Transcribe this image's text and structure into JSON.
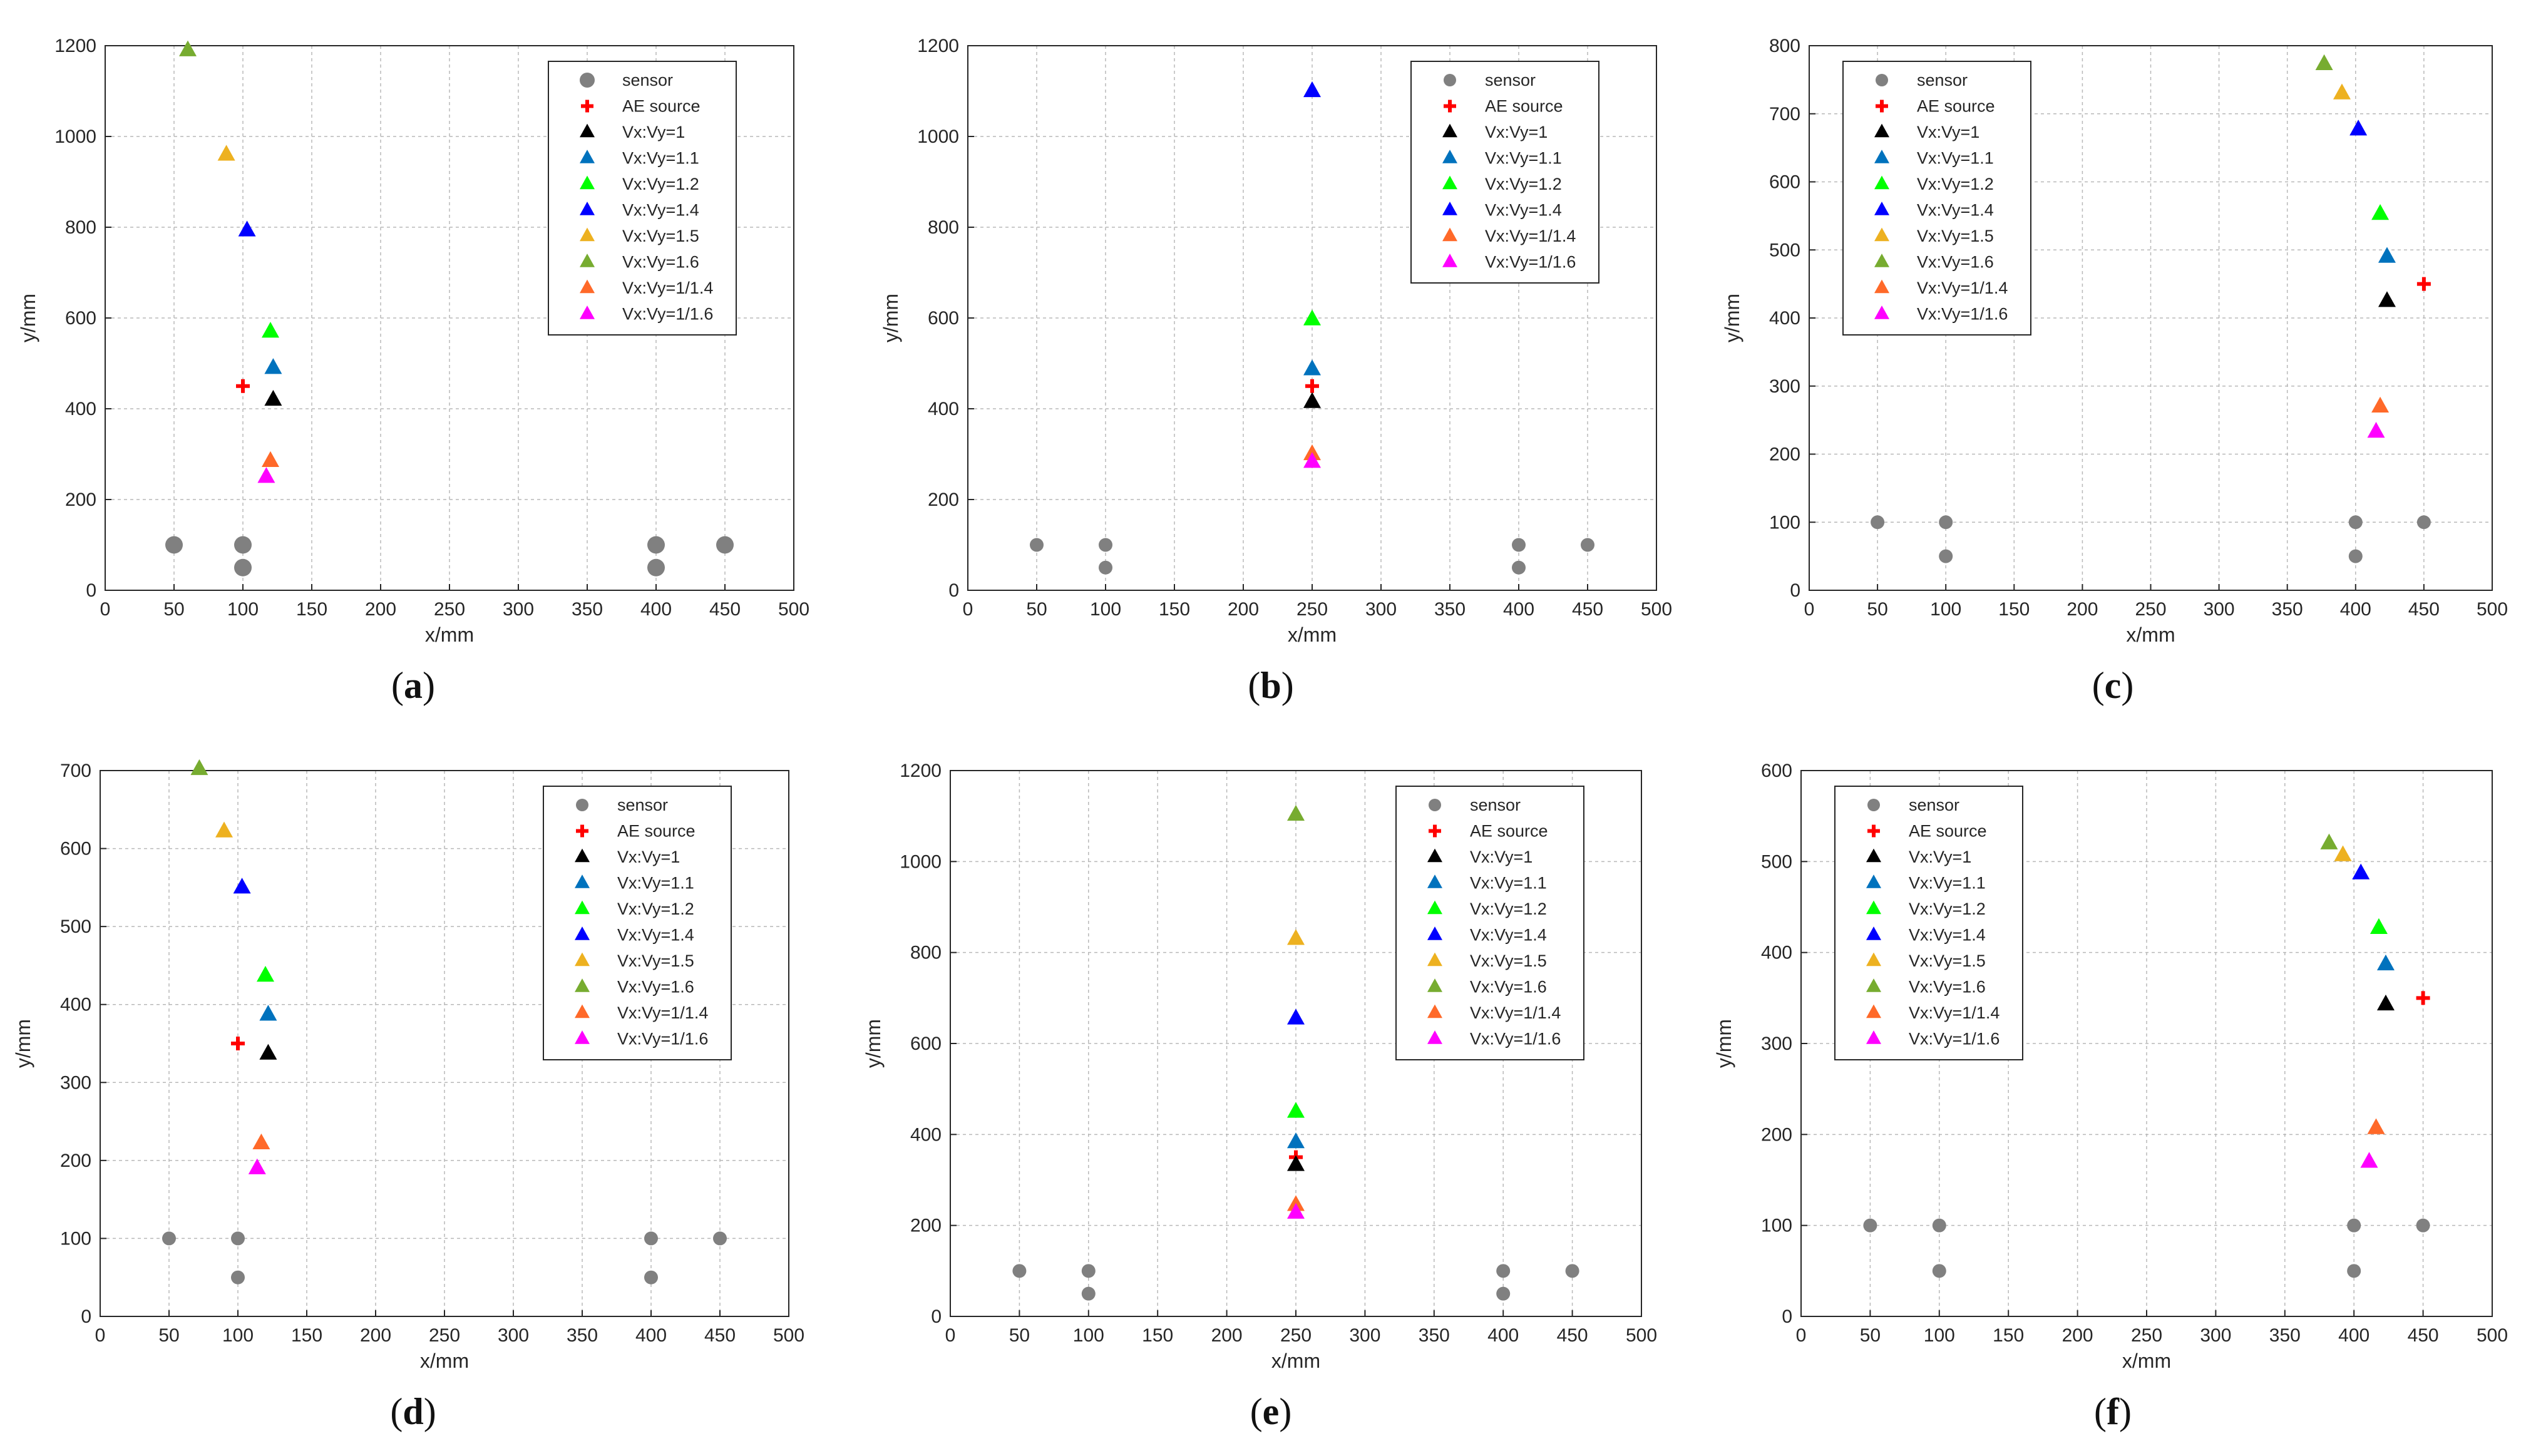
{
  "colors": {
    "sensor": "#808080",
    "ae_source": "#ff0000",
    "r1": "#000000",
    "r11": "#0072bd",
    "r12": "#00ff00",
    "r14": "#0000ff",
    "r15": "#edb120",
    "r16": "#77ac30",
    "r114": "#ff6929",
    "r116": "#ff00ff"
  },
  "legend_entries": [
    {
      "key": "sensor",
      "label": "sensor",
      "marker": "circle",
      "color_key": "sensor"
    },
    {
      "key": "ae",
      "label": "AE source",
      "marker": "plus",
      "color_key": "ae_source"
    },
    {
      "key": "r1",
      "label": "Vx:Vy=1",
      "marker": "triangle",
      "color_key": "r1"
    },
    {
      "key": "r11",
      "label": "Vx:Vy=1.1",
      "marker": "triangle",
      "color_key": "r11"
    },
    {
      "key": "r12",
      "label": "Vx:Vy=1.2",
      "marker": "triangle",
      "color_key": "r12"
    },
    {
      "key": "r14",
      "label": "Vx:Vy=1.4",
      "marker": "triangle",
      "color_key": "r14"
    },
    {
      "key": "r15",
      "label": "Vx:Vy=1.5",
      "marker": "triangle",
      "color_key": "r15"
    },
    {
      "key": "r16",
      "label": "Vx:Vy=1.6",
      "marker": "triangle",
      "color_key": "r16"
    },
    {
      "key": "r114",
      "label": "Vx:Vy=1/1.4",
      "marker": "triangle",
      "color_key": "r114"
    },
    {
      "key": "r116",
      "label": "Vx:Vy=1/1.6",
      "marker": "triangle",
      "color_key": "r116"
    }
  ],
  "chart_data": [
    {
      "id": "a",
      "caption": "a",
      "type": "scatter",
      "xlabel": "x/mm",
      "ylabel": "y/mm",
      "xlim": [
        0,
        500
      ],
      "ylim": [
        0,
        1200
      ],
      "xticks": [
        0,
        50,
        100,
        150,
        200,
        250,
        300,
        350,
        400,
        450,
        500
      ],
      "yticks": [
        0,
        200,
        400,
        600,
        800,
        1000,
        1200
      ],
      "grid": true,
      "legend_position": "top-right",
      "legend_keys": [
        "sensor",
        "ae",
        "r1",
        "r11",
        "r12",
        "r14",
        "r15",
        "r16",
        "r114",
        "r116"
      ],
      "sensor_size": "large",
      "sensors": [
        [
          50,
          100
        ],
        [
          100,
          100
        ],
        [
          100,
          50
        ],
        [
          400,
          100
        ],
        [
          400,
          50
        ],
        [
          450,
          100
        ]
      ],
      "ae_source": [
        100,
        450
      ],
      "points": {
        "r1": [
          122,
          420
        ],
        "r11": [
          122,
          490
        ],
        "r12": [
          120,
          570
        ],
        "r14": [
          103,
          793
        ],
        "r15": [
          88,
          960
        ],
        "r16": [
          60,
          1190
        ],
        "r114": [
          120,
          285
        ],
        "r116": [
          117,
          250
        ]
      }
    },
    {
      "id": "b",
      "caption": "b",
      "type": "scatter",
      "xlabel": "x/mm",
      "ylabel": "y/mm",
      "xlim": [
        0,
        500
      ],
      "ylim": [
        0,
        1200
      ],
      "xticks": [
        0,
        50,
        100,
        150,
        200,
        250,
        300,
        350,
        400,
        450,
        500
      ],
      "yticks": [
        0,
        200,
        400,
        600,
        800,
        1000,
        1200
      ],
      "grid": true,
      "legend_position": "top-right",
      "legend_keys": [
        "sensor",
        "ae",
        "r1",
        "r11",
        "r12",
        "r14",
        "r114",
        "r116"
      ],
      "sensor_size": "small",
      "sensors": [
        [
          50,
          100
        ],
        [
          100,
          100
        ],
        [
          100,
          50
        ],
        [
          400,
          100
        ],
        [
          400,
          50
        ],
        [
          450,
          100
        ]
      ],
      "ae_source": [
        250,
        450
      ],
      "points": {
        "r1": [
          250,
          415
        ],
        "r11": [
          250,
          487
        ],
        "r12": [
          250,
          597
        ],
        "r14": [
          250,
          1100
        ],
        "r114": [
          250,
          300
        ],
        "r116": [
          250,
          283
        ]
      }
    },
    {
      "id": "c",
      "caption": "c",
      "type": "scatter",
      "xlabel": "x/mm",
      "ylabel": "y/mm",
      "xlim": [
        0,
        500
      ],
      "ylim": [
        0,
        800
      ],
      "xticks": [
        0,
        50,
        100,
        150,
        200,
        250,
        300,
        350,
        400,
        450,
        500
      ],
      "yticks": [
        0,
        100,
        200,
        300,
        400,
        500,
        600,
        700,
        800
      ],
      "grid": true,
      "legend_position": "top-left",
      "legend_keys": [
        "sensor",
        "ae",
        "r1",
        "r11",
        "r12",
        "r14",
        "r15",
        "r16",
        "r114",
        "r116"
      ],
      "sensor_size": "small",
      "sensors": [
        [
          50,
          100
        ],
        [
          100,
          100
        ],
        [
          100,
          50
        ],
        [
          400,
          100
        ],
        [
          400,
          50
        ],
        [
          450,
          100
        ]
      ],
      "ae_source": [
        450,
        450
      ],
      "points": {
        "r1": [
          423,
          425
        ],
        "r11": [
          423,
          490
        ],
        "r12": [
          418,
          553
        ],
        "r14": [
          402,
          677
        ],
        "r15": [
          390,
          730
        ],
        "r16": [
          377,
          773
        ],
        "r114": [
          418,
          270
        ],
        "r116": [
          415,
          233
        ]
      }
    },
    {
      "id": "d",
      "caption": "d",
      "type": "scatter",
      "xlabel": "x/mm",
      "ylabel": "y/mm",
      "xlim": [
        0,
        500
      ],
      "ylim": [
        0,
        700
      ],
      "xticks": [
        0,
        50,
        100,
        150,
        200,
        250,
        300,
        350,
        400,
        450,
        500
      ],
      "yticks": [
        0,
        100,
        200,
        300,
        400,
        500,
        600,
        700
      ],
      "grid": true,
      "legend_position": "top-right",
      "legend_keys": [
        "sensor",
        "ae",
        "r1",
        "r11",
        "r12",
        "r14",
        "r15",
        "r16",
        "r114",
        "r116"
      ],
      "sensor_size": "small",
      "sensors": [
        [
          50,
          100
        ],
        [
          100,
          100
        ],
        [
          100,
          50
        ],
        [
          400,
          100
        ],
        [
          400,
          50
        ],
        [
          450,
          100
        ]
      ],
      "ae_source": [
        100,
        350
      ],
      "points": {
        "r1": [
          122,
          337
        ],
        "r11": [
          122,
          387
        ],
        "r12": [
          120,
          437
        ],
        "r14": [
          103,
          550
        ],
        "r15": [
          90,
          622
        ],
        "r16": [
          72,
          702
        ],
        "r114": [
          117,
          222
        ],
        "r116": [
          114,
          190
        ]
      }
    },
    {
      "id": "e",
      "caption": "e",
      "type": "scatter",
      "xlabel": "x/mm",
      "ylabel": "y/mm",
      "xlim": [
        0,
        500
      ],
      "ylim": [
        0,
        1200
      ],
      "xticks": [
        0,
        50,
        100,
        150,
        200,
        250,
        300,
        350,
        400,
        450,
        500
      ],
      "yticks": [
        0,
        200,
        400,
        600,
        800,
        1000,
        1200
      ],
      "grid": true,
      "legend_position": "top-right",
      "legend_keys": [
        "sensor",
        "ae",
        "r1",
        "r11",
        "r12",
        "r14",
        "r15",
        "r16",
        "r114",
        "r116"
      ],
      "sensor_size": "small",
      "sensors": [
        [
          50,
          100
        ],
        [
          100,
          100
        ],
        [
          100,
          50
        ],
        [
          400,
          100
        ],
        [
          400,
          50
        ],
        [
          450,
          100
        ]
      ],
      "ae_source": [
        250,
        350
      ],
      "points": {
        "r1": [
          250,
          333
        ],
        "r11": [
          250,
          383
        ],
        "r12": [
          250,
          450
        ],
        "r14": [
          250,
          655
        ],
        "r15": [
          250,
          830
        ],
        "r16": [
          250,
          1103
        ],
        "r114": [
          250,
          245
        ],
        "r116": [
          250,
          228
        ]
      }
    },
    {
      "id": "f",
      "caption": "f",
      "type": "scatter",
      "xlabel": "x/mm",
      "ylabel": "y/mm",
      "xlim": [
        0,
        500
      ],
      "ylim": [
        0,
        600
      ],
      "xticks": [
        0,
        50,
        100,
        150,
        200,
        250,
        300,
        350,
        400,
        450,
        500
      ],
      "yticks": [
        0,
        100,
        200,
        300,
        400,
        500,
        600
      ],
      "grid": true,
      "legend_position": "top-left",
      "legend_keys": [
        "sensor",
        "ae",
        "r1",
        "r11",
        "r12",
        "r14",
        "r15",
        "r16",
        "r114",
        "r116"
      ],
      "sensor_size": "small",
      "sensors": [
        [
          50,
          100
        ],
        [
          100,
          100
        ],
        [
          100,
          50
        ],
        [
          400,
          100
        ],
        [
          400,
          50
        ],
        [
          450,
          100
        ]
      ],
      "ae_source": [
        450,
        350
      ],
      "points": {
        "r1": [
          423,
          343
        ],
        "r11": [
          423,
          387
        ],
        "r12": [
          418,
          427
        ],
        "r14": [
          405,
          487
        ],
        "r15": [
          392,
          507
        ],
        "r16": [
          382,
          520
        ],
        "r114": [
          416,
          207
        ],
        "r116": [
          411,
          170
        ]
      }
    }
  ]
}
